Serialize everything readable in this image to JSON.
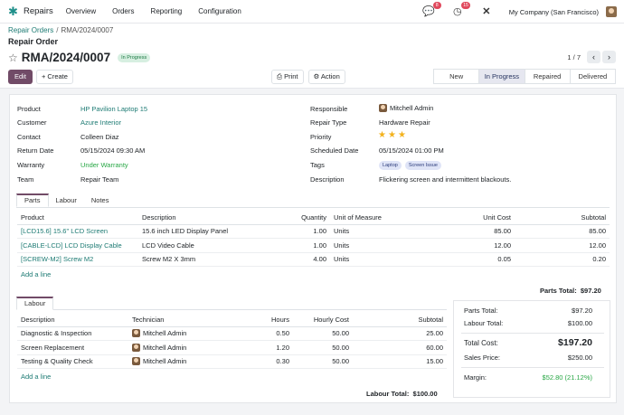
{
  "navbar": {
    "app_name": "Repairs",
    "menu": [
      "Overview",
      "Orders",
      "Reporting",
      "Configuration"
    ],
    "chat_badge": "8",
    "activity_badge": "15",
    "company": "My Company (San Francisco)"
  },
  "breadcrumb": {
    "parent": "Repair Orders",
    "current": "RMA/2024/0007"
  },
  "subtitle": "Repair Order",
  "record": {
    "name": "RMA/2024/0007",
    "state": "In Progress"
  },
  "pager": {
    "text": "1 / 7"
  },
  "buttons": {
    "edit": "Edit",
    "create": "+ Create",
    "print": "Print",
    "action": "Action"
  },
  "statusbar": [
    "New",
    "In Progress",
    "Repaired",
    "Delivered"
  ],
  "fields_left": [
    {
      "label": "Product",
      "value": "HP Pavilion Laptop 15"
    },
    {
      "label": "Customer",
      "value": "Azure Interior"
    },
    {
      "label": "Contact",
      "value": "Colleen Diaz"
    },
    {
      "label": "Return Date",
      "value": "05/15/2024 09:30 AM"
    },
    {
      "label": "Warranty",
      "value": "Under Warranty"
    },
    {
      "label": "Team",
      "value": "Repair Team"
    }
  ],
  "fields_right": {
    "responsible_label": "Responsible",
    "responsible": "Mitchell Admin",
    "repair_type_label": "Repair Type",
    "repair_type": "Hardware Repair",
    "priority_label": "Priority",
    "priority_stars": 3,
    "scheduled_label": "Scheduled Date",
    "scheduled": "05/15/2024 01:00 PM",
    "tags_label": "Tags",
    "tags": [
      "Laptop",
      "Screen Issue"
    ],
    "description_label": "Description",
    "description": "Flickering screen and intermittent blackouts."
  },
  "tabs": [
    "Parts",
    "Labour",
    "Notes"
  ],
  "parts": {
    "headers": [
      "Product",
      "Description",
      "Quantity",
      "Unit of Measure",
      "Unit Cost",
      "Subtotal"
    ],
    "rows": [
      [
        "[LCD15.6] 15.6\" LCD Screen",
        "15.6 inch LED Display Panel",
        "1.00",
        "Units",
        "85.00",
        "85.00"
      ],
      [
        "[CABLE-LCD] LCD Display Cable",
        "LCD Video Cable",
        "1.00",
        "Units",
        "12.00",
        "12.00"
      ],
      [
        "[SCREW-M2] Screw M2",
        "Screw M2 X 3mm",
        "4.00",
        "Units",
        "0.05",
        "0.20"
      ]
    ],
    "add_line": "Add a line",
    "total_label": "Parts Total:",
    "total": "$97.20"
  },
  "labour": {
    "tab": "Labour",
    "headers": [
      "Description",
      "Technician",
      "Hours",
      "Hourly Cost",
      "Subtotal"
    ],
    "rows": [
      [
        "Diagnostic & Inspection",
        "Mitchell Admin",
        "0.50",
        "50.00",
        "25.00"
      ],
      [
        "Screen Replacement",
        "Mitchell Admin",
        "1.20",
        "50.00",
        "60.00"
      ],
      [
        "Testing & Quality Check",
        "Mitchell Admin",
        "0.30",
        "50.00",
        "15.00"
      ]
    ],
    "add_line": "Add a line",
    "total_label": "Labour Total:",
    "total": "$100.00"
  },
  "summary": {
    "parts_label": "Parts Total:",
    "parts": "$97.20",
    "labour_label": "Labour Total:",
    "labour": "$100.00",
    "total_label": "Total Cost:",
    "total": "$197.20",
    "sales_label": "Sales Price:",
    "sales": "$250.00",
    "margin_label": "Margin:",
    "margin": "$52.80 (21.12%)"
  },
  "colors": {
    "brand": "#714b67",
    "link": "#1e7b74",
    "success": "#28a745"
  }
}
